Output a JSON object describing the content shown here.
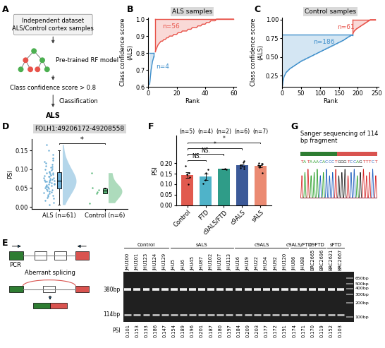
{
  "chart_data": [
    {
      "panel": "B",
      "type": "line",
      "title": "ALS samples",
      "xlabel": "Rank",
      "ylabel": "Class confidence score\n(ALS)",
      "x": [
        1,
        2,
        3,
        4,
        5,
        6,
        7,
        8,
        9,
        10,
        11,
        12,
        13,
        14,
        15,
        16,
        17,
        18,
        19,
        20,
        21,
        22,
        23,
        24,
        25,
        26,
        27,
        28,
        29,
        30,
        31,
        32,
        33,
        34,
        35,
        36,
        37,
        38,
        39,
        40,
        41,
        42,
        43,
        44,
        45,
        46,
        47,
        48,
        49,
        50,
        51,
        52,
        53,
        54,
        55,
        56,
        57,
        58,
        59,
        60
      ],
      "values": [
        0.615,
        0.7,
        0.75,
        0.78,
        0.81,
        0.83,
        0.85,
        0.86,
        0.87,
        0.87,
        0.88,
        0.88,
        0.89,
        0.89,
        0.9,
        0.9,
        0.9,
        0.91,
        0.91,
        0.91,
        0.92,
        0.92,
        0.92,
        0.93,
        0.93,
        0.93,
        0.93,
        0.94,
        0.94,
        0.94,
        0.95,
        0.95,
        0.95,
        0.95,
        0.96,
        0.96,
        0.96,
        0.97,
        0.97,
        0.97,
        0.98,
        0.98,
        0.98,
        0.99,
        0.99,
        0.99,
        0.99,
        1.0,
        1.0,
        1.0,
        1.0,
        1.0,
        1.0,
        1.0,
        1.0,
        1.0,
        1.0,
        1.0,
        1.0,
        1.0
      ],
      "threshold": 0.8,
      "annotations": [
        {
          "text": "n=56",
          "color": "#e8534a"
        },
        {
          "text": "n=4",
          "color": "#3f8fcb"
        }
      ],
      "xlim": [
        0,
        62
      ],
      "xticks": [
        0,
        20,
        40,
        60
      ],
      "ylim": [
        0.6,
        1.01
      ],
      "yticks": [
        0.6,
        0.7,
        0.8,
        0.9,
        1.0
      ]
    },
    {
      "panel": "C",
      "type": "line",
      "title": "Control samples",
      "xlabel": "Rank",
      "ylabel": "Class confidence score\n(ALS)",
      "x": [
        1,
        2,
        3,
        4,
        5,
        6,
        7,
        8,
        9,
        10,
        11,
        12,
        13,
        14,
        15,
        16,
        17,
        18,
        19,
        20,
        21,
        22,
        23,
        24,
        25,
        26,
        27,
        28,
        29,
        30,
        31,
        32,
        33,
        34,
        35,
        36,
        37,
        38,
        39,
        40,
        41,
        42,
        43,
        44,
        45,
        46,
        47,
        48,
        49,
        50,
        51,
        52,
        53,
        54,
        55,
        56,
        57,
        58,
        59,
        60,
        61,
        62,
        63,
        64,
        65,
        66,
        67,
        68,
        69,
        70,
        71,
        72,
        73,
        74,
        75,
        76,
        77,
        78,
        79,
        80,
        81,
        82,
        83,
        84,
        85,
        86,
        87,
        88,
        89,
        90,
        91,
        92,
        93,
        94,
        95,
        96,
        97,
        98,
        99,
        100,
        101,
        102,
        103,
        104,
        105,
        106,
        107,
        108,
        109,
        110,
        111,
        112,
        113,
        114,
        115,
        116,
        117,
        118,
        119,
        120,
        121,
        122,
        123,
        124,
        125,
        126,
        127,
        128,
        129,
        130,
        131,
        132,
        133,
        134,
        135,
        136,
        137,
        138,
        139,
        140,
        141,
        142,
        143,
        144,
        145,
        146,
        147,
        148,
        149,
        150,
        151,
        152,
        153,
        154,
        155,
        156,
        157,
        158,
        159,
        160,
        161,
        162,
        163,
        164,
        165,
        166,
        167,
        168,
        169,
        170,
        171,
        172,
        173,
        174,
        175,
        176,
        177,
        178,
        179,
        180,
        181,
        182,
        183,
        184,
        185,
        186,
        187,
        188,
        189,
        190,
        191,
        192,
        193,
        194,
        195,
        196,
        197,
        198,
        199,
        200,
        201,
        202,
        203,
        204,
        205,
        206,
        207,
        208,
        209,
        210,
        211,
        212,
        213,
        214,
        215,
        216,
        217,
        218,
        219,
        220,
        221,
        222,
        223,
        224,
        225,
        226,
        227,
        228,
        229,
        230,
        231,
        232,
        233,
        234,
        235,
        236,
        237,
        238,
        239,
        240,
        241,
        242,
        243,
        244,
        245,
        246,
        247
      ],
      "values": [
        0.12,
        0.17,
        0.2,
        0.22,
        0.24,
        0.25,
        0.26,
        0.27,
        0.28,
        0.29,
        0.3,
        0.3,
        0.31,
        0.31,
        0.32,
        0.32,
        0.33,
        0.33,
        0.34,
        0.34,
        0.35,
        0.35,
        0.35,
        0.36,
        0.36,
        0.36,
        0.37,
        0.37,
        0.37,
        0.38,
        0.38,
        0.38,
        0.39,
        0.39,
        0.39,
        0.4,
        0.4,
        0.4,
        0.41,
        0.41,
        0.41,
        0.42,
        0.42,
        0.42,
        0.43,
        0.43,
        0.43,
        0.44,
        0.44,
        0.44,
        0.45,
        0.45,
        0.45,
        0.45,
        0.46,
        0.46,
        0.46,
        0.46,
        0.47,
        0.47,
        0.47,
        0.47,
        0.48,
        0.48,
        0.48,
        0.48,
        0.49,
        0.49,
        0.49,
        0.49,
        0.5,
        0.5,
        0.5,
        0.5,
        0.51,
        0.51,
        0.51,
        0.51,
        0.52,
        0.52,
        0.52,
        0.52,
        0.53,
        0.53,
        0.53,
        0.53,
        0.54,
        0.54,
        0.54,
        0.54,
        0.55,
        0.55,
        0.55,
        0.55,
        0.56,
        0.56,
        0.56,
        0.56,
        0.57,
        0.57,
        0.57,
        0.57,
        0.58,
        0.58,
        0.58,
        0.58,
        0.59,
        0.59,
        0.59,
        0.59,
        0.6,
        0.6,
        0.6,
        0.6,
        0.61,
        0.61,
        0.61,
        0.61,
        0.62,
        0.62,
        0.62,
        0.62,
        0.63,
        0.63,
        0.63,
        0.63,
        0.64,
        0.64,
        0.64,
        0.64,
        0.65,
        0.65,
        0.65,
        0.65,
        0.66,
        0.66,
        0.66,
        0.66,
        0.67,
        0.67,
        0.67,
        0.67,
        0.68,
        0.68,
        0.68,
        0.68,
        0.69,
        0.69,
        0.69,
        0.69,
        0.7,
        0.7,
        0.7,
        0.7,
        0.71,
        0.71,
        0.71,
        0.71,
        0.72,
        0.72,
        0.72,
        0.72,
        0.73,
        0.73,
        0.73,
        0.74,
        0.74,
        0.74,
        0.75,
        0.75,
        0.75,
        0.76,
        0.76,
        0.76,
        0.77,
        0.77,
        0.77,
        0.78,
        0.78,
        0.78,
        0.78,
        0.79,
        0.79,
        0.79,
        0.79,
        0.79,
        0.81,
        0.82,
        0.83,
        0.84,
        0.85,
        0.85,
        0.86,
        0.86,
        0.87,
        0.87,
        0.88,
        0.88,
        0.88,
        0.89,
        0.89,
        0.89,
        0.9,
        0.9,
        0.9,
        0.91,
        0.91,
        0.91,
        0.92,
        0.92,
        0.92,
        0.93,
        0.93,
        0.93,
        0.94,
        0.94,
        0.94,
        0.95,
        0.95,
        0.95,
        0.96,
        0.96,
        0.96,
        0.97,
        0.97,
        0.97,
        0.98,
        0.98,
        0.98,
        0.99,
        0.99,
        0.99,
        1.0,
        1.0,
        1.0,
        1.0,
        1.0,
        1.0,
        1.0,
        1.0,
        1.0,
        1.0,
        1.0,
        1.0,
        1.0,
        1.0,
        1.0
      ],
      "threshold": 0.8,
      "annotations": [
        {
          "text": "n=61",
          "color": "#e8534a"
        },
        {
          "text": "n=186",
          "color": "#3f8fcb"
        }
      ],
      "xlim": [
        0,
        255
      ],
      "xticks": [
        0,
        50,
        100,
        150,
        200,
        250
      ],
      "ylim": [
        0.1,
        1.03
      ],
      "yticks": [
        0.25,
        {
          "value": 0.5,
          "label": "0.50"
        },
        0.75,
        {
          "value": 1.0,
          "label": "1.00"
        }
      ]
    },
    {
      "panel": "D",
      "type": "raincloud",
      "title": "FOLH1:49206172-49208558",
      "ylabel": "PSI",
      "categories": [
        "ALS (n=61)",
        "Control (n=6)"
      ],
      "points": [
        [
          0.005,
          0.012,
          0.018,
          0.022,
          0.025,
          0.028,
          0.03,
          0.033,
          0.035,
          0.038,
          0.04,
          0.042,
          0.044,
          0.045,
          0.047,
          0.049,
          0.05,
          0.052,
          0.054,
          0.055,
          0.057,
          0.058,
          0.06,
          0.061,
          0.063,
          0.064,
          0.065,
          0.067,
          0.068,
          0.069,
          0.07,
          0.071,
          0.072,
          0.074,
          0.075,
          0.077,
          0.078,
          0.08,
          0.081,
          0.083,
          0.085,
          0.086,
          0.088,
          0.09,
          0.091,
          0.093,
          0.095,
          0.097,
          0.1,
          0.102,
          0.105,
          0.108,
          0.11,
          0.113,
          0.116,
          0.12,
          0.125,
          0.13,
          0.14,
          0.15,
          0.165
        ],
        [
          0.01,
          0.035,
          0.04,
          0.045,
          0.05,
          0.09
        ]
      ],
      "colors": [
        "#6baed6",
        "#5cb87a"
      ],
      "significance": [
        {
          "pair": [
            0,
            1
          ],
          "label": "*"
        }
      ],
      "ylim": [
        -0.005,
        0.18
      ],
      "yticks": [
        {
          "value": 0,
          "label": "0.00"
        },
        0.05,
        {
          "value": 0.1,
          "label": "0.10"
        },
        0.15
      ]
    },
    {
      "panel": "F",
      "type": "bar",
      "ylabel": "PSI",
      "categories": [
        "Control",
        "FTD",
        "c9ALS/FTD",
        "c9ALS",
        "sALS"
      ],
      "n_labels": [
        "(n=5)",
        "(n=4)",
        "(n=2)",
        "(n=6)",
        "(n=7)"
      ],
      "values": [
        0.144,
        0.136,
        0.1725,
        0.189,
        0.186
      ],
      "errors": [
        0.014,
        0.015,
        0.0015,
        0.006,
        0.006
      ],
      "points": [
        [
          0.101,
          0.153,
          0.133,
          0.186,
          0.147
        ],
        [
          0.17,
          0.119,
          0.152,
          0.103
        ],
        [
          0.174,
          0.171
        ],
        [
          0.184,
          0.209,
          0.203,
          0.177,
          0.172,
          0.191
        ],
        [
          0.154,
          0.189,
          0.196,
          0.201,
          0.187,
          0.18,
          0.197
        ]
      ],
      "colors": [
        "#e15a4f",
        "#4fb3c9",
        "#2f9c88",
        "#3c5a99",
        "#eb8a72"
      ],
      "significance": [
        {
          "pair": [
            0,
            1
          ],
          "label": "NS."
        },
        {
          "pair": [
            0,
            2
          ],
          "label": "NS."
        },
        {
          "pair": [
            0,
            3
          ],
          "label": "*"
        },
        {
          "pair": [
            0,
            4
          ],
          "label": "*"
        }
      ],
      "ylim": [
        0,
        0.33
      ],
      "yticks": [
        {
          "value": 0,
          "label": "0.00"
        },
        0.05,
        {
          "value": 0.1,
          "label": "0.10"
        },
        0.15,
        {
          "value": 0.2,
          "label": "0.20"
        }
      ]
    }
  ],
  "diagram_A": {
    "panel": "A",
    "dataset": [
      "Independent dataset",
      "ALS/Control cortex samples"
    ],
    "model": "Pre-trained RF model",
    "criterion": "Class confidence score > 0.8",
    "step": "Classification",
    "result": "ALS"
  },
  "gel_E": {
    "panel": "E",
    "pcr": "PCR",
    "splicing": "Aberrant splicing",
    "psi_label": "PSI",
    "groups": [
      {
        "name": "Control",
        "lanes": [
          {
            "name": "JHU100",
            "psi": "0.101"
          },
          {
            "name": "JHU101",
            "psi": "0.153"
          },
          {
            "name": "JHU123",
            "psi": "0.133"
          },
          {
            "name": "JHU124",
            "psi": "0.186"
          },
          {
            "name": "JHU129",
            "psi": "0.147"
          }
        ]
      },
      {
        "name": "sALS",
        "lanes": [
          {
            "name": "JHU5",
            "psi": "0.154"
          },
          {
            "name": "JHU6",
            "psi": "0.189"
          },
          {
            "name": "JHU45",
            "psi": "0.196"
          },
          {
            "name": "JHU87",
            "psi": "0.201"
          },
          {
            "name": "JHU102",
            "psi": "0.187"
          },
          {
            "name": "JHU107",
            "psi": "0.180"
          },
          {
            "name": "JHU113",
            "psi": "0.197"
          }
        ]
      },
      {
        "name": "c9ALS",
        "lanes": [
          {
            "name": "JHU16",
            "psi": "0.184"
          },
          {
            "name": "JHU19",
            "psi": "0.209"
          },
          {
            "name": "JHU22",
            "psi": "0.203"
          },
          {
            "name": "JHU54",
            "psi": "0.177"
          },
          {
            "name": "JHU92",
            "psi": "0.172"
          },
          {
            "name": "JHU120",
            "psi": "0.191"
          }
        ]
      },
      {
        "name": "c9ALS/FTD",
        "lanes": [
          {
            "name": "JHU86",
            "psi": "0.174"
          },
          {
            "name": "JHU88",
            "psi": "0.171"
          }
        ]
      },
      {
        "name": "c9FTD",
        "lanes": [
          {
            "name": "BRC2665",
            "psi": "0.170"
          },
          {
            "name": "BRC2696",
            "psi": "0.119"
          }
        ]
      },
      {
        "name": "sFTD",
        "lanes": [
          {
            "name": "BRC2621",
            "psi": "0.152"
          },
          {
            "name": "BRC2667",
            "psi": "0.103"
          }
        ]
      }
    ],
    "bands": [
      {
        "value": 380,
        "label": "380bp"
      },
      {
        "value": 114,
        "label": "114bp"
      }
    ],
    "ladder": [
      {
        "value": 650,
        "label": "650bp"
      },
      {
        "value": 500,
        "label": "500bp"
      },
      {
        "value": 400,
        "label": "400bp"
      },
      {
        "value": 300,
        "label": "300bp"
      },
      {
        "value": 200,
        "label": "200bp"
      },
      {
        "value": 100,
        "label": "100bp"
      }
    ]
  },
  "sanger_G": {
    "panel": "G",
    "title": "Sanger sequencing of 114 bp fragment",
    "sequence": "TATAAACACCCTGGGTCCAGTTTCT"
  }
}
